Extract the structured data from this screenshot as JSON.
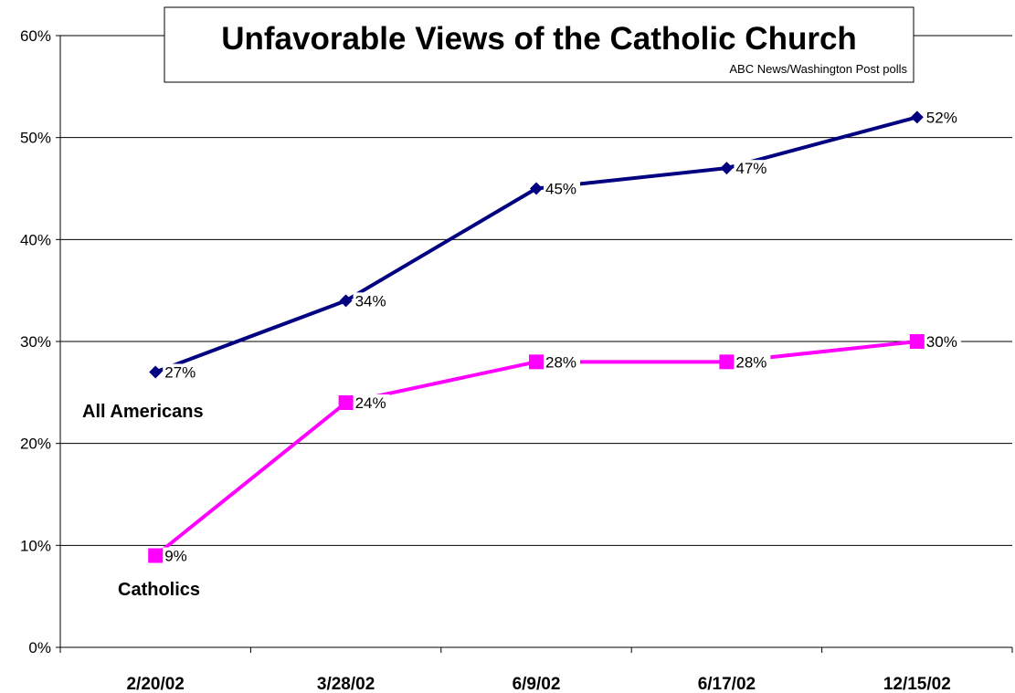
{
  "chart_data": {
    "type": "line",
    "title": "Unfavorable Views of the Catholic Church",
    "subtitle": "ABC News/Washington Post polls",
    "categories": [
      "2/20/02",
      "3/28/02",
      "6/9/02",
      "6/17/02",
      "12/15/02"
    ],
    "ylim": [
      0,
      60
    ],
    "yticks": [
      "0%",
      "10%",
      "20%",
      "30%",
      "40%",
      "50%",
      "60%"
    ],
    "grid": true,
    "series": [
      {
        "name": "All Americans",
        "values": [
          27,
          34,
          45,
          47,
          52
        ],
        "data_labels": [
          "27%",
          "34%",
          "45%",
          "47%",
          "52%"
        ],
        "color": "#000080",
        "marker": "diamond"
      },
      {
        "name": "Catholics",
        "values": [
          9,
          24,
          28,
          28,
          30
        ],
        "data_labels": [
          "9%",
          "24%",
          "28%",
          "28%",
          "30%"
        ],
        "color": "#FF00FF",
        "marker": "square"
      }
    ]
  }
}
